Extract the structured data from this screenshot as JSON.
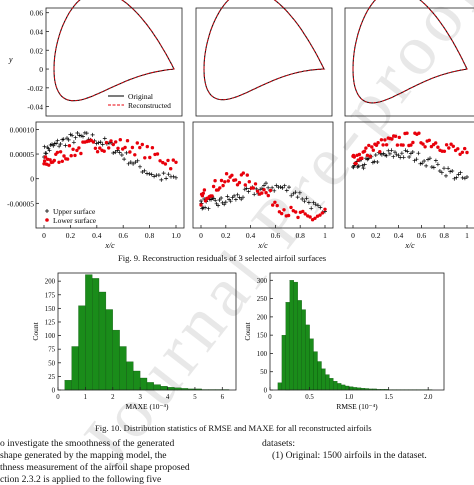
{
  "figure9": {
    "caption": "Fig. 9.    Reconstruction residuals of 3 selected airfoil surfaces",
    "shape_panels": {
      "ylabel": "y",
      "yticks": [
        "0.06",
        "0.04",
        "0.02",
        "0",
        "-0.02",
        "-0.04"
      ],
      "legend": [
        "Original",
        "Reconstructed"
      ]
    },
    "residual_panels": {
      "yticks": [
        "0.00010",
        "0.00005",
        "0",
        "-0.00005"
      ],
      "xlabel": "x/c",
      "xticks": [
        "0",
        "0.2",
        "0.4",
        "0.6",
        "0.8",
        "1.0"
      ],
      "xticks_cut": [
        "0",
        "0.2",
        "0.4",
        "0.6",
        "0.8",
        "1"
      ],
      "legend": [
        "Upper surface",
        "Lower surface"
      ]
    },
    "colors": {
      "upper": "#000000",
      "lower": "#e8000b",
      "original": "#111111",
      "reconstructed": "#e8000b"
    }
  },
  "figure10": {
    "caption": "Fig. 10.    Distribution statistics of RMSE and MAXE for all reconstructed airfoils",
    "bar_color": "#1a8c1a"
  },
  "chart_data": [
    {
      "type": "bar",
      "xlabel": "MAXE (10⁻⁴)",
      "ylabel": "Count",
      "xticks": [
        "0",
        "1",
        "2",
        "3",
        "4",
        "5",
        "6"
      ],
      "yticks": [
        "0",
        "25",
        "50",
        "75",
        "100",
        "125",
        "150",
        "175",
        "200"
      ],
      "xlim": [
        0,
        6.5
      ],
      "ylim": [
        0,
        215
      ],
      "bin_width": 0.25,
      "bins_start": [
        0.25,
        0.5,
        0.75,
        1.0,
        1.25,
        1.5,
        1.75,
        2.0,
        2.25,
        2.5,
        2.75,
        3.0,
        3.25,
        3.5,
        3.75,
        4.0,
        4.25,
        4.5,
        4.75,
        5.0,
        5.25,
        5.5,
        5.75,
        6.0
      ],
      "values": [
        18,
        80,
        155,
        212,
        205,
        180,
        148,
        110,
        80,
        52,
        35,
        22,
        14,
        10,
        7,
        5,
        4,
        3,
        2,
        2,
        1,
        1,
        1,
        1
      ]
    },
    {
      "type": "bar",
      "xlabel": "RMSE (10⁻⁴)",
      "ylabel": "Count",
      "xticks": [
        "0",
        "0.5",
        "1.0",
        "1.5",
        "2.0"
      ],
      "yticks": [
        "0",
        "50",
        "100",
        "150",
        "200",
        "250",
        "300"
      ],
      "xlim": [
        0,
        2.2
      ],
      "ylim": [
        0,
        320
      ],
      "bin_width": 0.05,
      "bins_start": [
        0.1,
        0.15,
        0.2,
        0.25,
        0.3,
        0.35,
        0.4,
        0.45,
        0.5,
        0.55,
        0.6,
        0.65,
        0.7,
        0.75,
        0.8,
        0.85,
        0.9,
        0.95,
        1.0,
        1.05,
        1.1,
        1.15,
        1.2,
        1.25,
        1.3,
        1.35,
        1.4,
        1.45,
        1.5,
        1.55,
        1.6,
        1.65,
        1.7,
        1.75,
        1.8,
        1.85,
        1.9,
        1.95,
        2.0
      ],
      "values": [
        20,
        150,
        240,
        300,
        295,
        245,
        220,
        178,
        140,
        105,
        78,
        58,
        42,
        32,
        24,
        18,
        14,
        11,
        9,
        7,
        6,
        5,
        4,
        3,
        3,
        2,
        2,
        2,
        1,
        1,
        1,
        1,
        1,
        1,
        1,
        1,
        1,
        1,
        1
      ]
    }
  ],
  "text": {
    "left_lines": [
      "o investigate the smoothness of the generated",
      "shape generated by the mapping model, the",
      "thness measurement of the airfoil shape proposed",
      "ction 2.3.2 is applied to the following five"
    ],
    "right_lines": [
      "datasets:",
      "(1)  Original: 1500 airfoils in the dataset."
    ]
  },
  "watermark": "Journal Pre-proof"
}
